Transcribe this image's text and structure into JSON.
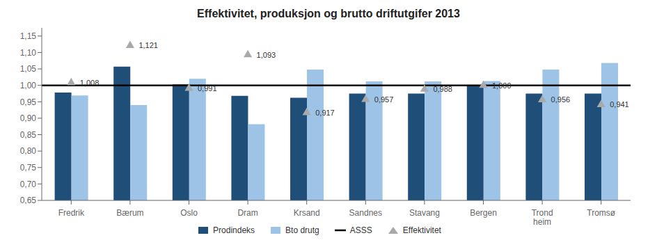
{
  "chart_data": {
    "type": "bar",
    "title": "Effektivitet, produksjon og brutto driftutgifer 2013",
    "categories": [
      "Fredrik",
      "Bærum",
      "Oslo",
      "Dram",
      "Krsand",
      "Sandnes",
      "Stavang",
      "Bergen",
      "Trond\nheim",
      "Tromsø"
    ],
    "series": [
      {
        "name": "Prodindeks",
        "type": "bar",
        "color": "#1F4E79",
        "values": [
          0.978,
          1.057,
          1.003,
          0.968,
          0.962,
          0.975,
          0.975,
          0.999,
          0.975,
          0.975
        ]
      },
      {
        "name": "Bto drutg",
        "type": "bar",
        "color": "#9DC3E6",
        "values": [
          0.969,
          0.94,
          1.02,
          0.882,
          1.048,
          1.012,
          1.012,
          1.013,
          1.048,
          1.068
        ]
      },
      {
        "name": "ASSS",
        "type": "hline",
        "color": "#000000",
        "y": 1.0
      },
      {
        "name": "Effektivitet",
        "type": "scatter",
        "color": "#A9A9A9",
        "marker": "triangle",
        "data_labels": true,
        "values": [
          1.008,
          1.121,
          0.991,
          1.093,
          0.917,
          0.957,
          0.988,
          1.0,
          0.956,
          0.941
        ],
        "value_labels": [
          "1,008",
          "1,121",
          "0,991",
          "1,093",
          "0,917",
          "0,957",
          "0,988",
          "1,000",
          "0,956",
          "0,941"
        ]
      }
    ],
    "ylim": [
      0.65,
      1.175
    ],
    "yticks": [
      {
        "value": 0.65,
        "label": "0,65"
      },
      {
        "value": 0.7,
        "label": "0,70"
      },
      {
        "value": 0.75,
        "label": "0,75"
      },
      {
        "value": 0.8,
        "label": "0,80"
      },
      {
        "value": 0.85,
        "label": "0,85"
      },
      {
        "value": 0.9,
        "label": "0,90"
      },
      {
        "value": 0.95,
        "label": "0,95"
      },
      {
        "value": 1.0,
        "label": "1,00"
      },
      {
        "value": 1.05,
        "label": "1,05"
      },
      {
        "value": 1.1,
        "label": "1,10"
      },
      {
        "value": 1.15,
        "label": "1,15"
      }
    ],
    "grid": false,
    "legend": "bottom"
  }
}
